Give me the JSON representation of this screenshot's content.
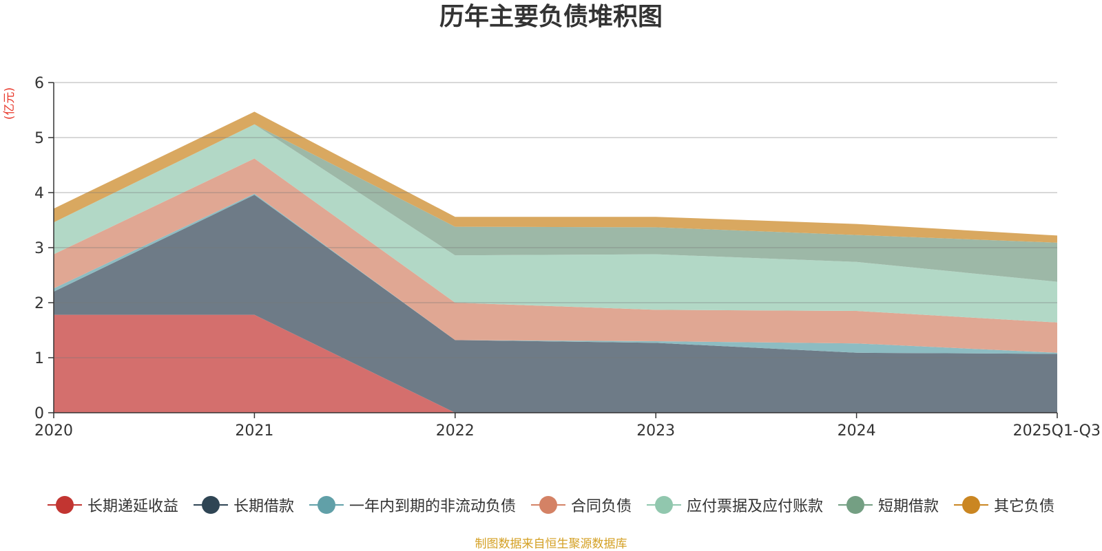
{
  "title": "历年主要负债堆积图",
  "unit": "(亿元)",
  "source": "制图数据来自恒生聚源数据库",
  "chart_data": {
    "type": "area",
    "stacked": true,
    "title": "历年主要负债堆积图",
    "ylabel": "(亿元)",
    "x": [
      "2020",
      "2021",
      "2022",
      "2023",
      "2024",
      "2025Q1-Q3"
    ],
    "ylim": [
      0,
      6
    ],
    "yticks": [
      0,
      1,
      2,
      3,
      4,
      5,
      6
    ],
    "grid": true,
    "legend_position": "bottom",
    "series": [
      {
        "name": "长期递延收益",
        "color": "#c23531",
        "area_color": "#d46f6d",
        "values": [
          1.78,
          1.78,
          0.0,
          0.0,
          0.0,
          0.0
        ]
      },
      {
        "name": "长期借款",
        "color": "#2f4554",
        "area_color": "#6e7b87",
        "values": [
          0.42,
          2.18,
          1.32,
          1.27,
          1.09,
          1.07
        ]
      },
      {
        "name": "一年内到期的非流动负债",
        "color": "#61a0a8",
        "area_color": "#8dbcc2",
        "values": [
          0.06,
          0.02,
          0.0,
          0.03,
          0.17,
          0.02
        ]
      },
      {
        "name": "合同负债",
        "color": "#d48265",
        "area_color": "#e0a793",
        "values": [
          0.62,
          0.64,
          0.68,
          0.57,
          0.59,
          0.55
        ]
      },
      {
        "name": "应付票据及应付账款",
        "color": "#91c7ae",
        "area_color": "#b2d8c6",
        "values": [
          0.58,
          0.62,
          0.86,
          1.01,
          0.89,
          0.74
        ]
      },
      {
        "name": "短期借款",
        "color": "#749f83",
        "area_color": "#9db8a7",
        "values": [
          0.0,
          0.0,
          0.52,
          0.49,
          0.49,
          0.71
        ]
      },
      {
        "name": "其它负债",
        "color": "#ca8622",
        "area_color": "#d9a860",
        "values": [
          0.25,
          0.23,
          0.18,
          0.19,
          0.2,
          0.13
        ]
      }
    ]
  }
}
